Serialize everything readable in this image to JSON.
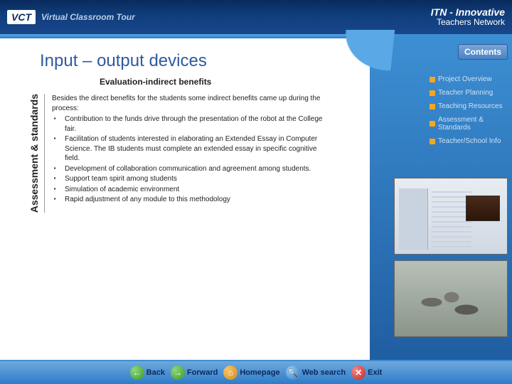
{
  "header": {
    "logo_abbr": "VCT",
    "logo_text": "Virtual Classroom Tour",
    "itn_abbr": "ITN",
    "itn_line1": "- Innovative",
    "itn_line2": "Teachers Network"
  },
  "page": {
    "title": "Input – output devices",
    "subtitle": "Evaluation-indirect benefits",
    "section_label": "Assessment & standards",
    "intro": "Besides the direct benefits for the students some indirect benefits came up during the process:",
    "bullets": [
      "Contribution to the funds drive through the presentation of the robot at the College fair.",
      "Facilitation of students interested in elaborating an Extended Essay in Computer Science. The IB students must complete an extended essay in specific cognitive field.",
      "Development of collaboration communication and agreement among students.",
      "Support team spirit among students",
      "Simulation of academic environment",
      "Rapid adjustment of any module to this methodology"
    ]
  },
  "sidenav": {
    "contents_label": "Contents",
    "items": [
      "Project Overview",
      "Teacher Planning",
      "Teaching Resources",
      "Assessment & Standards",
      "Teacher/School Info"
    ]
  },
  "bottom": {
    "back": "Back",
    "forward": "Forward",
    "home": "Homepage",
    "web": "Web search",
    "exit": "Exit"
  },
  "colors": {
    "header_bg": "#0f3d7a",
    "accent": "#2d7cc9",
    "title": "#2d5a9e",
    "nav_bullet": "#f5a623"
  }
}
